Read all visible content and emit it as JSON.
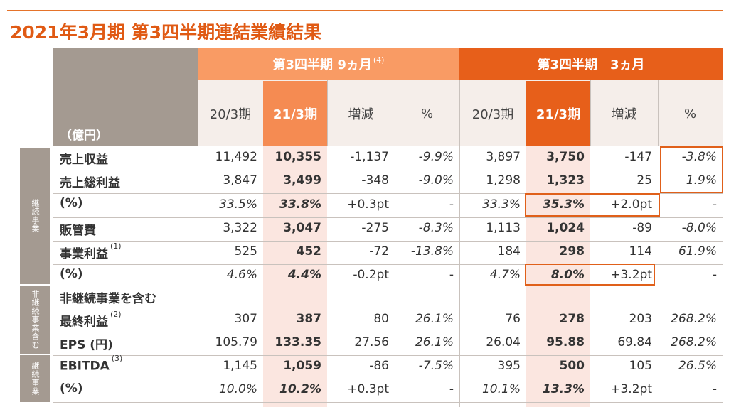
{
  "title": "2021年3月期 第3四半期連結業績結果",
  "header": {
    "group1": "第3四半期 9ヵ月",
    "group1_note": "(4)",
    "group2": "第3四半期　3ヵ月",
    "unit": "（億円）",
    "cols": [
      "20/3期",
      "21/3期",
      "増減",
      "%",
      "20/3期",
      "21/3期",
      "増減",
      "%"
    ]
  },
  "segments": {
    "continuing": "継続事業",
    "incl_discontinued": "非継続事業含む",
    "continuing2": "継続事業"
  },
  "rows": [
    {
      "label": "売上収益",
      "note": "",
      "values": [
        "11,492",
        "10,355",
        "-1,137",
        "-9.9%",
        "3,897",
        "3,750",
        "-147",
        "-3.8%"
      ]
    },
    {
      "label": "売上総利益",
      "note": "",
      "values": [
        "3,847",
        "3,499",
        "-348",
        "-9.0%",
        "1,298",
        "1,323",
        "25",
        "1.9%"
      ]
    },
    {
      "label": "(%)",
      "note": "",
      "values": [
        "33.5%",
        "33.8%",
        "+0.3pt",
        "-",
        "33.3%",
        "35.3%",
        "+2.0pt",
        "-"
      ]
    },
    {
      "label": "販管費",
      "note": "",
      "values": [
        "3,322",
        "3,047",
        "-275",
        "-8.3%",
        "1,113",
        "1,024",
        "-89",
        "-8.0%"
      ]
    },
    {
      "label": "事業利益",
      "note": "(1)",
      "values": [
        "525",
        "452",
        "-72",
        "-13.8%",
        "184",
        "298",
        "114",
        "61.9%"
      ]
    },
    {
      "label": "(%)",
      "note": "",
      "values": [
        "4.6%",
        "4.4%",
        "-0.2pt",
        "-",
        "4.7%",
        "8.0%",
        "+3.2pt",
        "-"
      ]
    },
    {
      "label": "非継続事業を含む",
      "label2": "最終利益",
      "note": "(2)",
      "values": [
        "307",
        "387",
        "80",
        "26.1%",
        "76",
        "278",
        "203",
        "268.2%"
      ]
    },
    {
      "label": "EPS (円)",
      "note": "",
      "values": [
        "105.79",
        "133.35",
        "27.56",
        "26.1%",
        "26.04",
        "95.88",
        "69.84",
        "268.2%"
      ]
    },
    {
      "label": "EBITDA",
      "note": "(3)",
      "values": [
        "1,145",
        "1,059",
        "-86",
        "-7.5%",
        "395",
        "500",
        "105",
        "26.5%"
      ]
    },
    {
      "label": "(%)",
      "note": "",
      "values": [
        "10.0%",
        "10.2%",
        "+0.3pt",
        "-",
        "10.1%",
        "13.3%",
        "+3.2pt",
        "-"
      ]
    }
  ],
  "colors": {
    "accent": "#e05a14",
    "header_light": "#f99b64",
    "header_dark": "#e75f1a",
    "label_bg": "#a49a91"
  }
}
